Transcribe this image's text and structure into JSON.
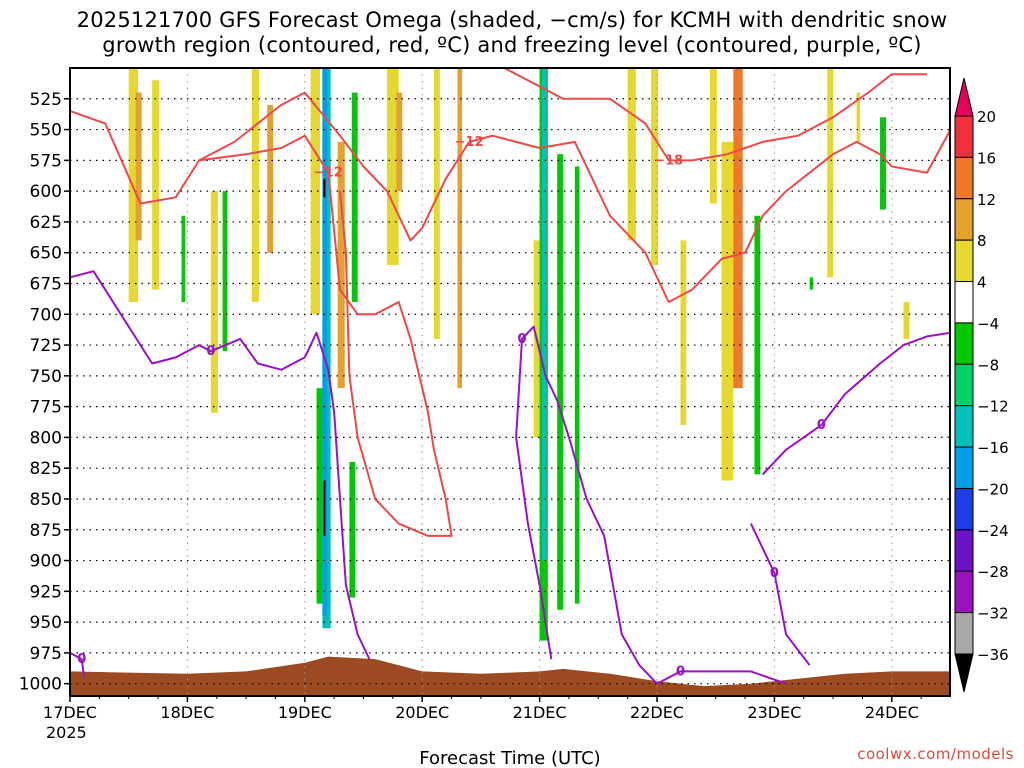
{
  "chart_data": {
    "type": "heatmap",
    "title_line1": "2025121700 GFS Forecast Omega (shaded, −cm/s) for KCMH with dendritic snow",
    "title_line2": "growth region (contoured, red, ºC) and freezing level (contoured, purple, ºC)",
    "xlabel": "Forecast Time (UTC)",
    "ylabel": "",
    "x_tick_labels": [
      "17DEC",
      "18DEC",
      "19DEC",
      "20DEC",
      "21DEC",
      "22DEC",
      "23DEC",
      "24DEC"
    ],
    "x_year_label": "2025",
    "x_range_days": [
      0,
      7.5
    ],
    "y_tick_labels": [
      "525",
      "550",
      "575",
      "600",
      "625",
      "650",
      "675",
      "700",
      "725",
      "750",
      "775",
      "800",
      "825",
      "850",
      "875",
      "900",
      "925",
      "950",
      "975",
      "1000"
    ],
    "y_range_hpa": [
      500,
      1010
    ],
    "colorbar": {
      "labels": [
        "20",
        "16",
        "12",
        "8",
        "4",
        "−4",
        "−8",
        "−12",
        "−16",
        "−20",
        "−24",
        "−28",
        "−32",
        "−36"
      ],
      "colors": [
        "#e8005a",
        "#f0303a",
        "#f07828",
        "#e4a22c",
        "#e6d82c",
        "#ffffff",
        "#00c800",
        "#00d068",
        "#00c0b8",
        "#00a0e8",
        "#1e3ce8",
        "#6a14c8",
        "#9b10c0",
        "#a8a8a8",
        "#000000"
      ]
    },
    "omega_bands": [
      {
        "day": 0.5,
        "width": 0.08,
        "top": 500,
        "bottom": 690,
        "color": "#e6d82c"
      },
      {
        "day": 0.56,
        "width": 0.05,
        "top": 520,
        "bottom": 640,
        "color": "#e4a22c"
      },
      {
        "day": 0.7,
        "width": 0.06,
        "top": 510,
        "bottom": 680,
        "color": "#e6d82c"
      },
      {
        "day": 0.95,
        "width": 0.03,
        "top": 620,
        "bottom": 690,
        "color": "#00c800"
      },
      {
        "day": 1.2,
        "width": 0.06,
        "top": 600,
        "bottom": 780,
        "color": "#e6d82c"
      },
      {
        "day": 1.3,
        "width": 0.04,
        "top": 600,
        "bottom": 730,
        "color": "#00c800"
      },
      {
        "day": 1.55,
        "width": 0.06,
        "top": 500,
        "bottom": 690,
        "color": "#e6d82c"
      },
      {
        "day": 1.68,
        "width": 0.05,
        "top": 530,
        "bottom": 650,
        "color": "#e4a22c"
      },
      {
        "day": 2.05,
        "width": 0.08,
        "top": 500,
        "bottom": 700,
        "color": "#e6d82c"
      },
      {
        "day": 2.1,
        "width": 0.06,
        "top": 760,
        "bottom": 935,
        "color": "#00c800"
      },
      {
        "day": 2.15,
        "width": 0.07,
        "top": 500,
        "bottom": 955,
        "color": "#00c0b8"
      },
      {
        "day": 2.15,
        "width": 0.04,
        "top": 500,
        "bottom": 945,
        "color": "#00a0e8"
      },
      {
        "day": 2.28,
        "width": 0.06,
        "top": 560,
        "bottom": 760,
        "color": "#e4a22c"
      },
      {
        "day": 2.4,
        "width": 0.05,
        "top": 520,
        "bottom": 690,
        "color": "#00c800"
      },
      {
        "day": 2.38,
        "width": 0.05,
        "top": 820,
        "bottom": 930,
        "color": "#00c800"
      },
      {
        "day": 2.7,
        "width": 0.1,
        "top": 500,
        "bottom": 660,
        "color": "#e6d82c"
      },
      {
        "day": 2.78,
        "width": 0.05,
        "top": 520,
        "bottom": 600,
        "color": "#e4a22c"
      },
      {
        "day": 3.1,
        "width": 0.05,
        "top": 500,
        "bottom": 720,
        "color": "#e6d82c"
      },
      {
        "day": 3.3,
        "width": 0.04,
        "top": 500,
        "bottom": 760,
        "color": "#e4a22c"
      },
      {
        "day": 3.95,
        "width": 0.06,
        "top": 640,
        "bottom": 800,
        "color": "#e6d82c"
      },
      {
        "day": 4.0,
        "width": 0.07,
        "top": 500,
        "bottom": 965,
        "color": "#00c800"
      },
      {
        "day": 4.02,
        "width": 0.04,
        "top": 500,
        "bottom": 900,
        "color": "#00c0b8"
      },
      {
        "day": 4.15,
        "width": 0.05,
        "top": 570,
        "bottom": 940,
        "color": "#00c800"
      },
      {
        "day": 4.3,
        "width": 0.04,
        "top": 580,
        "bottom": 935,
        "color": "#00c800"
      },
      {
        "day": 4.75,
        "width": 0.07,
        "top": 500,
        "bottom": 640,
        "color": "#e6d82c"
      },
      {
        "day": 4.95,
        "width": 0.06,
        "top": 500,
        "bottom": 660,
        "color": "#e6d82c"
      },
      {
        "day": 5.2,
        "width": 0.05,
        "top": 640,
        "bottom": 790,
        "color": "#e6d82c"
      },
      {
        "day": 5.45,
        "width": 0.06,
        "top": 500,
        "bottom": 610,
        "color": "#e6d82c"
      },
      {
        "day": 5.55,
        "width": 0.1,
        "top": 560,
        "bottom": 835,
        "color": "#e6d82c"
      },
      {
        "day": 5.65,
        "width": 0.08,
        "top": 500,
        "bottom": 760,
        "color": "#f07828"
      },
      {
        "day": 5.83,
        "width": 0.05,
        "top": 620,
        "bottom": 830,
        "color": "#00c800"
      },
      {
        "day": 6.3,
        "width": 0.03,
        "top": 670,
        "bottom": 680,
        "color": "#00c800"
      },
      {
        "day": 6.45,
        "width": 0.05,
        "top": 500,
        "bottom": 670,
        "color": "#e6d82c"
      },
      {
        "day": 6.7,
        "width": 0.03,
        "top": 520,
        "bottom": 560,
        "color": "#e6d82c"
      },
      {
        "day": 6.9,
        "width": 0.05,
        "top": 540,
        "bottom": 615,
        "color": "#00c800"
      },
      {
        "day": 7.1,
        "width": 0.05,
        "top": 690,
        "bottom": 720,
        "color": "#e6d82c"
      }
    ],
    "dgz_contours": [
      {
        "label": "−12",
        "points": [
          [
            0,
            535
          ],
          [
            0.3,
            545
          ],
          [
            0.6,
            610
          ],
          [
            0.9,
            605
          ],
          [
            1.1,
            575
          ],
          [
            1.5,
            570
          ],
          [
            1.8,
            565
          ],
          [
            2.0,
            555
          ],
          [
            2.2,
            585
          ],
          [
            2.3,
            680
          ],
          [
            2.45,
            700
          ],
          [
            2.6,
            700
          ],
          [
            2.8,
            690
          ],
          [
            2.9,
            720
          ],
          [
            3.05,
            780
          ],
          [
            3.1,
            810
          ],
          [
            3.2,
            850
          ],
          [
            3.25,
            880
          ],
          [
            3.05,
            880
          ],
          [
            2.8,
            870
          ],
          [
            2.6,
            850
          ],
          [
            2.45,
            800
          ],
          [
            2.38,
            750
          ],
          [
            2.35,
            650
          ],
          [
            2.3,
            600
          ]
        ]
      },
      {
        "label": "−12",
        "points": [
          [
            1.1,
            575
          ],
          [
            1.4,
            560
          ],
          [
            1.8,
            530
          ],
          [
            2.0,
            520
          ],
          [
            2.3,
            555
          ],
          [
            2.5,
            580
          ],
          [
            2.7,
            600
          ],
          [
            2.9,
            640
          ],
          [
            3.0,
            630
          ],
          [
            3.2,
            590
          ],
          [
            3.4,
            560
          ],
          [
            3.6,
            555
          ],
          [
            3.8,
            560
          ],
          [
            4.0,
            565
          ],
          [
            4.3,
            560
          ],
          [
            4.6,
            620
          ],
          [
            4.9,
            650
          ],
          [
            5.1,
            690
          ],
          [
            5.3,
            680
          ],
          [
            5.55,
            655
          ],
          [
            5.75,
            650
          ],
          [
            5.9,
            620
          ],
          [
            6.1,
            600
          ],
          [
            6.3,
            585
          ],
          [
            6.5,
            570
          ],
          [
            6.7,
            560
          ],
          [
            6.9,
            570
          ],
          [
            7.0,
            580
          ],
          [
            7.3,
            585
          ],
          [
            7.5,
            550
          ]
        ]
      },
      {
        "label": "−18",
        "points": [
          [
            3.7,
            500
          ],
          [
            4.2,
            525
          ],
          [
            4.6,
            525
          ],
          [
            4.9,
            545
          ],
          [
            5.1,
            575
          ],
          [
            5.3,
            575
          ],
          [
            5.6,
            570
          ],
          [
            5.9,
            560
          ],
          [
            6.2,
            555
          ],
          [
            6.5,
            540
          ],
          [
            6.8,
            520
          ],
          [
            7.0,
            505
          ],
          [
            7.3,
            505
          ]
        ]
      }
    ],
    "frz_contours": [
      {
        "label": "0",
        "points": [
          [
            0,
            670
          ],
          [
            0.2,
            665
          ],
          [
            0.5,
            710
          ],
          [
            0.7,
            740
          ],
          [
            0.9,
            735
          ],
          [
            1.1,
            725
          ],
          [
            1.2,
            730
          ],
          [
            1.45,
            720
          ],
          [
            1.6,
            740
          ],
          [
            1.8,
            745
          ],
          [
            2.0,
            735
          ],
          [
            2.1,
            715
          ],
          [
            2.2,
            745
          ],
          [
            2.25,
            780
          ],
          [
            2.3,
            850
          ],
          [
            2.35,
            920
          ],
          [
            2.45,
            960
          ],
          [
            2.55,
            980
          ]
        ]
      },
      {
        "label": "0",
        "points": [
          [
            4.1,
            980
          ],
          [
            4.0,
            920
          ],
          [
            3.9,
            870
          ],
          [
            3.8,
            800
          ],
          [
            3.85,
            720
          ],
          [
            3.95,
            710
          ],
          [
            4.05,
            750
          ],
          [
            4.15,
            770
          ],
          [
            4.25,
            800
          ],
          [
            4.4,
            850
          ],
          [
            4.55,
            880
          ],
          [
            4.7,
            960
          ],
          [
            4.85,
            985
          ],
          [
            5.0,
            1000
          ]
        ]
      },
      {
        "label": "0",
        "points": [
          [
            0,
            975
          ],
          [
            0.1,
            980
          ],
          [
            0.12,
            995
          ]
        ]
      },
      {
        "label": "0",
        "points": [
          [
            5.0,
            1000
          ],
          [
            5.2,
            990
          ],
          [
            5.8,
            990
          ],
          [
            6.1,
            1000
          ]
        ]
      },
      {
        "label": "0",
        "points": [
          [
            5.8,
            870
          ],
          [
            6.0,
            910
          ],
          [
            6.1,
            960
          ],
          [
            6.3,
            985
          ]
        ]
      },
      {
        "label": "0",
        "points": [
          [
            5.9,
            830
          ],
          [
            6.1,
            810
          ],
          [
            6.4,
            790
          ],
          [
            6.6,
            765
          ],
          [
            6.9,
            740
          ],
          [
            7.1,
            725
          ],
          [
            7.3,
            718
          ],
          [
            7.5,
            715
          ]
        ]
      }
    ]
  },
  "watermark": "coolwx.com/models"
}
